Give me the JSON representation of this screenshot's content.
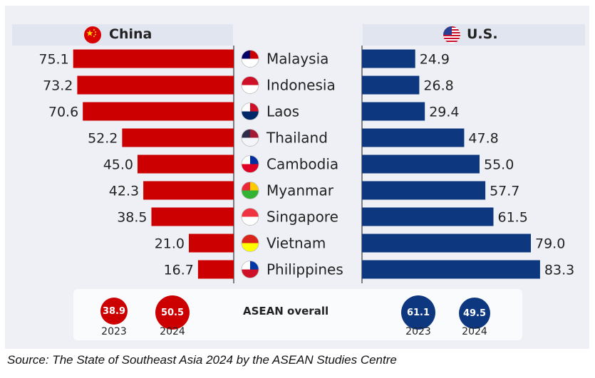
{
  "chart_data": {
    "type": "bar",
    "categories": [
      "Malaysia",
      "Indonesia",
      "Laos",
      "Thailand",
      "Cambodia",
      "Myanmar",
      "Singapore",
      "Vietnam",
      "Philippines"
    ],
    "series": [
      {
        "name": "China",
        "values": [
          75.1,
          73.2,
          70.6,
          52.2,
          45.0,
          42.3,
          38.5,
          21.0,
          16.7
        ],
        "color": "#cc0000"
      },
      {
        "name": "U.S.",
        "values": [
          24.9,
          26.8,
          29.4,
          47.8,
          55.0,
          57.7,
          61.5,
          79.0,
          83.3
        ],
        "color": "#0d3880"
      }
    ],
    "value_labels": {
      "China": [
        "75.1",
        "73.2",
        "70.6",
        "52.2",
        "45.0",
        "42.3",
        "38.5",
        "21.0",
        "16.7"
      ],
      "U.S.": [
        "24.9",
        "26.8",
        "29.4",
        "47.8",
        "55.0",
        "57.7",
        "61.5",
        "79.0",
        "83.3"
      ]
    },
    "xlim": [
      0,
      100
    ],
    "layout": "diverging"
  },
  "headers": {
    "china": "China",
    "us": "U.S."
  },
  "summary": {
    "label": "ASEAN overall",
    "china": [
      {
        "year": "2023",
        "value": "38.9"
      },
      {
        "year": "2024",
        "value": "50.5"
      }
    ],
    "us": [
      {
        "year": "2023",
        "value": "61.1"
      },
      {
        "year": "2024",
        "value": "49.5"
      }
    ]
  },
  "source": "Source: The State of Southeast Asia 2024 by the ASEAN Studies Centre",
  "colors": {
    "china": "#cc0000",
    "us": "#0d3880"
  }
}
